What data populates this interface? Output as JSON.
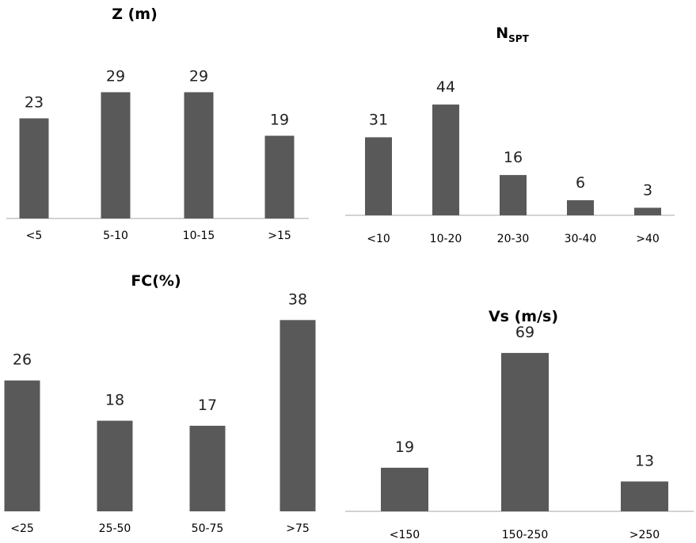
{
  "chart_data": [
    {
      "type": "bar",
      "title": "Z (m)",
      "categories": [
        "<5",
        "5-10",
        "10-15",
        ">15"
      ],
      "values": [
        23,
        29,
        29,
        19
      ],
      "xlabel": "",
      "ylabel": "",
      "grid": false,
      "bar_color": "#595959"
    },
    {
      "type": "bar",
      "title": "N",
      "title_subscript": "SPT",
      "categories": [
        "<10",
        "10-20",
        "20-30",
        "30-40",
        ">40"
      ],
      "values": [
        31,
        44,
        16,
        6,
        3
      ],
      "xlabel": "",
      "ylabel": "",
      "grid": false,
      "bar_color": "#595959"
    },
    {
      "type": "bar",
      "title": "FC(%)",
      "categories": [
        "<25",
        "25-50",
        "50-75",
        ">75"
      ],
      "values": [
        26,
        18,
        17,
        38
      ],
      "xlabel": "",
      "ylabel": "",
      "grid": false,
      "bar_color": "#595959"
    },
    {
      "type": "bar",
      "title": "Vs (m/s)",
      "categories": [
        "<150",
        "150-250",
        ">250"
      ],
      "values": [
        19,
        69,
        13
      ],
      "xlabel": "",
      "ylabel": "",
      "grid": false,
      "bar_color": "#595959"
    }
  ]
}
